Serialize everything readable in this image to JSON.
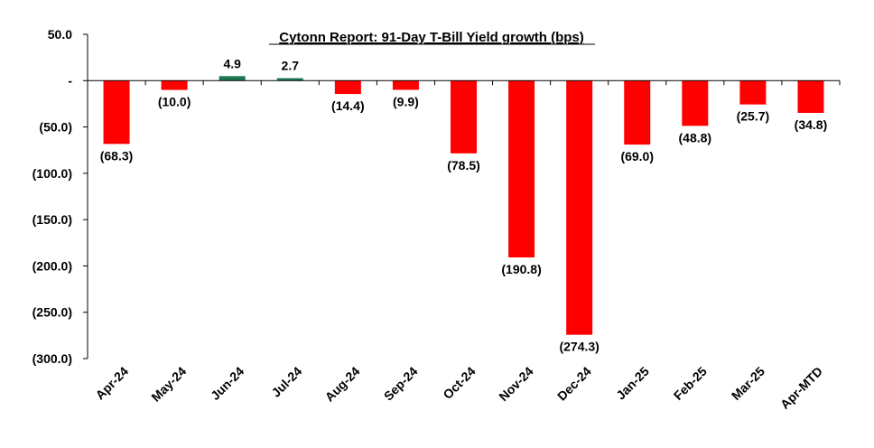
{
  "chart_data": {
    "type": "bar",
    "title": "Cytonn Report:  91-Day T-Bill Yield growth (bps)",
    "xlabel": "",
    "ylabel": "",
    "ylim": [
      -300,
      50
    ],
    "yticks": [
      50,
      0,
      -50,
      -100,
      -150,
      -200,
      -250,
      -300
    ],
    "ytick_labels": [
      "50.0",
      "-",
      "(50.0)",
      "(100.0)",
      "(150.0)",
      "(200.0)",
      "(250.0)",
      "(300.0)"
    ],
    "categories": [
      "Apr-24",
      "May-24",
      "Jun-24",
      "Jul-24",
      "Aug-24",
      "Sep-24",
      "Oct-24",
      "Nov-24",
      "Dec-24",
      "Jan-25",
      "Feb-25",
      "Mar-25",
      "Apr-MTD"
    ],
    "values": [
      -68.3,
      -10.0,
      4.9,
      2.7,
      -14.4,
      -9.9,
      -78.5,
      -190.8,
      -274.3,
      -69.0,
      -48.8,
      -25.7,
      -34.8
    ],
    "data_labels": [
      "(68.3)",
      "(10.0)",
      "4.9",
      "2.7",
      "(14.4)",
      "(9.9)",
      "(78.5)",
      "(190.8)",
      "(274.3)",
      "(69.0)",
      "(48.8)",
      "(25.7)",
      "(34.8)"
    ],
    "grid": false,
    "legend": "none",
    "colors": {
      "negative": "#ff0000",
      "positive": "#1e7a55",
      "axis": "#000000"
    }
  }
}
